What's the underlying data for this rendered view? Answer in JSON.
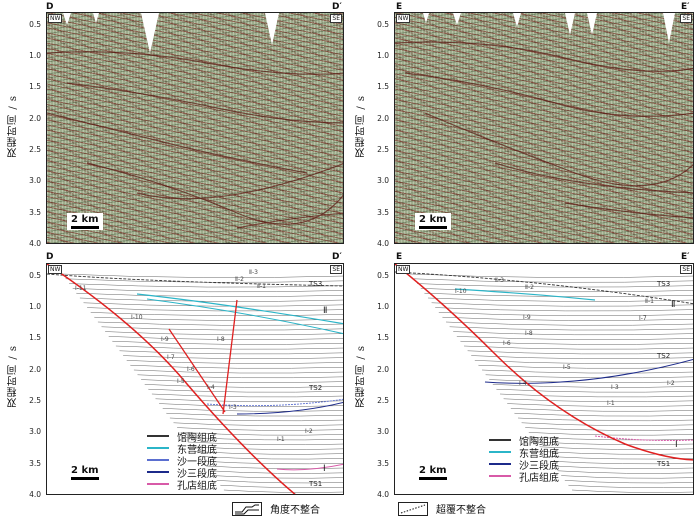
{
  "y_axis_title": "双程时间 / s",
  "y_ticks": [
    "0.5",
    "1.0",
    "1.5",
    "2.0",
    "2.5",
    "3.0",
    "3.5",
    "4.0"
  ],
  "direction_labels": {
    "left": "NW",
    "right": "SE"
  },
  "scale": "2 km",
  "sections": {
    "left": {
      "start": "D",
      "end": "D′"
    },
    "right": {
      "start": "E",
      "end": "E′"
    }
  },
  "left_interp_labels": {
    "ts3": "TS3",
    "ts2": "TS2",
    "ts1": "TS1",
    "roman2": "Ⅱ",
    "roman1": "Ⅰ",
    "ii3": "Ⅱ-3",
    "ii2": "Ⅱ-2",
    "ii1": "Ⅱ-1",
    "i11": "Ⅰ-11",
    "i10": "Ⅰ-10",
    "i9": "Ⅰ-9",
    "i8": "Ⅰ-8",
    "i7": "Ⅰ-7",
    "i6": "Ⅰ-6",
    "i5": "Ⅰ-5",
    "i4": "Ⅰ-4",
    "i3": "Ⅰ-3",
    "i2": "Ⅰ-2",
    "i1": "Ⅰ-1"
  },
  "right_interp_labels": {
    "ts3": "TS3",
    "ts2": "TS2",
    "ts1": "TS1",
    "roman2": "Ⅱ",
    "roman1": "Ⅰ",
    "ii3": "Ⅱ-3",
    "ii2": "Ⅱ-2",
    "ii1": "Ⅱ-1",
    "i10": "Ⅰ-10",
    "i9": "Ⅰ-9",
    "i8": "Ⅰ-8",
    "i7": "Ⅰ-7",
    "i6": "Ⅰ-6",
    "i5": "Ⅰ-5",
    "i4": "Ⅰ-4",
    "i3": "Ⅰ-3",
    "i2": "Ⅰ-2",
    "i1": "Ⅰ-1"
  },
  "left_legend": [
    {
      "label": "馆陶组底",
      "color": "#333333"
    },
    {
      "label": "东营组底",
      "color": "#2bb5c8"
    },
    {
      "label": "沙一段底",
      "color": "#5b6fd0"
    },
    {
      "label": "沙三段底",
      "color": "#1c2a8a"
    },
    {
      "label": "孔店组底",
      "color": "#d85aa8"
    }
  ],
  "right_legend": [
    {
      "label": "馆陶组底",
      "color": "#333333"
    },
    {
      "label": "东营组底",
      "color": "#2bb5c8"
    },
    {
      "label": "沙三段底",
      "color": "#1c2a8a"
    },
    {
      "label": "孔店组底",
      "color": "#d85aa8"
    }
  ],
  "bottom_legend": {
    "angular": "角度不整合",
    "overlap": "超覆不整合"
  },
  "colors": {
    "fault": "#e02020",
    "ties": "#d85aa8"
  }
}
